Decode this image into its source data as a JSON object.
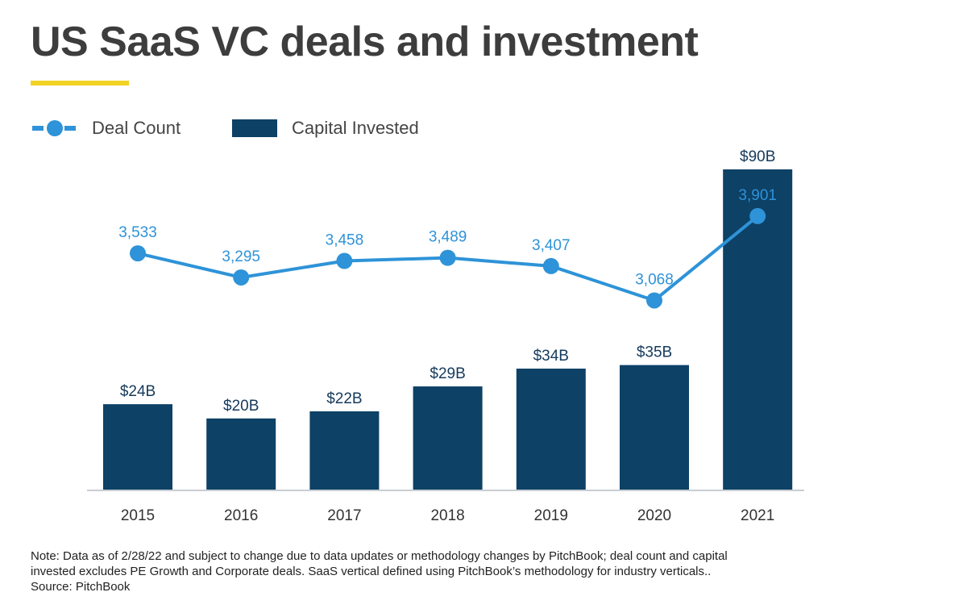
{
  "title": "US SaaS VC deals and investment",
  "colors": {
    "accent": "#f2d224",
    "bar": "#0d4166",
    "line": "#2e93d8",
    "axis": "#c8cdd3"
  },
  "legend": {
    "deal_count": "Deal Count",
    "capital_invested": "Capital Invested"
  },
  "chart_data": {
    "type": "bar",
    "categories": [
      "2015",
      "2016",
      "2017",
      "2018",
      "2019",
      "2020",
      "2021"
    ],
    "series": [
      {
        "name": "Capital Invested",
        "type": "bar",
        "values": [
          24,
          20,
          22,
          29,
          34,
          35,
          90
        ],
        "labels": [
          "$24B",
          "$20B",
          "$22B",
          "$29B",
          "$34B",
          "$35B",
          "$90B"
        ]
      },
      {
        "name": "Deal Count",
        "type": "line",
        "values": [
          3533,
          3295,
          3458,
          3489,
          3407,
          3068,
          3901
        ],
        "labels": [
          "3,533",
          "3,295",
          "3,458",
          "3,489",
          "3,407",
          "3,068",
          "3,901"
        ]
      }
    ],
    "legend_position": "top-left",
    "grid": false
  },
  "footnote": {
    "line1": "Note: Data as of 2/28/22 and subject to change due to data updates or methodology changes by PitchBook; deal count and capital",
    "line2": "invested excludes PE Growth and Corporate deals. SaaS vertical defined using PitchBook’s methodology for industry verticals..",
    "line3": "Source: PitchBook"
  }
}
